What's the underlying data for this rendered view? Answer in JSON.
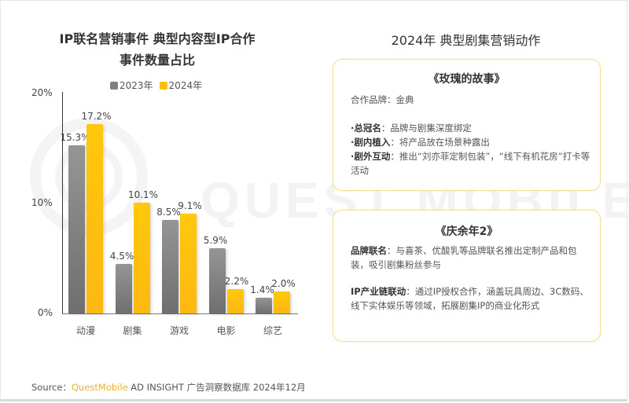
{
  "left_panel": {
    "title_line1": "IP联名营销事件 典型内容型IP合作",
    "title_line2": "事件数量占比"
  },
  "chart_data": {
    "type": "bar",
    "title": "IP联名营销事件 典型内容型IP合作事件数量占比",
    "xlabel": "",
    "ylabel": "",
    "ylim": [
      0,
      20
    ],
    "y_ticks": [
      "0%",
      "10%",
      "20%"
    ],
    "grid": false,
    "legend_position": "top",
    "categories": [
      "动漫",
      "剧集",
      "游戏",
      "电影",
      "综艺"
    ],
    "series": [
      {
        "name": "2023年",
        "color": "#808080",
        "values": [
          15.3,
          4.5,
          8.5,
          5.9,
          1.4
        ],
        "labels": [
          "15.3%",
          "4.5%",
          "8.5%",
          "5.9%",
          "1.4%"
        ]
      },
      {
        "name": "2024年",
        "color": "#FFC107",
        "values": [
          17.2,
          10.1,
          9.1,
          2.2,
          2.0
        ],
        "labels": [
          "17.2%",
          "10.1%",
          "9.1%",
          "2.2%",
          "2.0%"
        ]
      }
    ]
  },
  "right_panel": {
    "title": "2024年 典型剧集营销动作",
    "cards": [
      {
        "title": "《玫瑰的故事》",
        "brand_line": "合作品牌：金典",
        "items": [
          {
            "bold": "·总冠名",
            "text": "：品牌与剧集深度绑定"
          },
          {
            "bold": "·剧内植入",
            "text": "：将产品放在场景种露出"
          },
          {
            "bold": "·剧外互动",
            "text": "：推出“刘亦菲定制包装”，“线下有机花房”打卡等活动"
          }
        ]
      },
      {
        "title": "《庆余年2》",
        "items": [
          {
            "bold": "品牌联名",
            "text": "：与喜茶、优酸乳等品牌联名推出定制产品和包装，吸引剧集粉丝参与"
          },
          {
            "bold": "IP产业链联动",
            "text": "：通过IP授权合作，涵盖玩具周边、3C数码、线下实体娱乐等领域，拓展剧集IP的商业化形式"
          }
        ]
      }
    ]
  },
  "footer": {
    "source_prefix": "Source：",
    "brand": "QuestMobile",
    "source_rest": " AD INSIGHT 广告洞察数据库 2024年12月"
  },
  "watermark": "QUEST MOBILE",
  "colors": {
    "gray_2023": "#808080",
    "yellow_2024": "#FFC107",
    "card_border": "#F2E08A"
  }
}
